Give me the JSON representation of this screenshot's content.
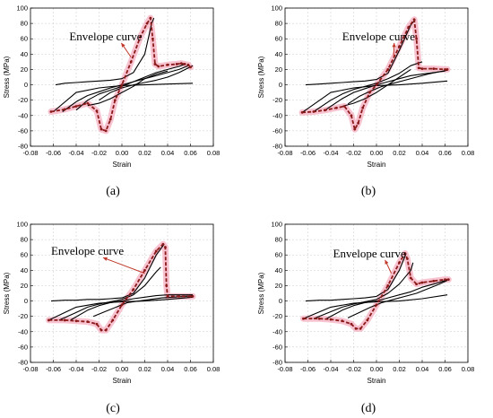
{
  "chart_data": [
    {
      "type": "line",
      "panel_label": "(a)",
      "xlabel": "Strain",
      "ylabel": "Stress (MPa)",
      "xlim": [
        -0.08,
        0.08
      ],
      "ylim": [
        -80,
        100
      ],
      "xticks": [
        "-0.08",
        "-0.06",
        "-0.04",
        "-0.02",
        "0.00",
        "0.02",
        "0.04",
        "0.06",
        "0.08"
      ],
      "yticks": [
        "-80",
        "-60",
        "-40",
        "-20",
        "0",
        "20",
        "40",
        "60",
        "80",
        "100"
      ],
      "grid": true,
      "annotation": {
        "text": "Envelope curve",
        "x": -0.046,
        "y": 58,
        "arrow_to": [
          0.008,
          36
        ]
      },
      "series": [
        {
          "name": "",
          "role": "envelope",
          "x": [
            -0.062,
            -0.05,
            -0.04,
            -0.03,
            -0.022,
            -0.018,
            -0.014,
            -0.01,
            -0.006,
            0.0,
            0.008,
            0.016,
            0.022,
            0.025,
            0.027,
            0.029,
            0.032,
            0.04,
            0.048,
            0.052,
            0.055,
            0.058,
            0.06
          ],
          "y": [
            -35,
            -32,
            -28,
            -24,
            -34,
            -58,
            -60,
            -45,
            -20,
            0,
            30,
            62,
            80,
            87,
            60,
            27,
            24,
            26,
            27,
            28,
            27,
            26,
            23
          ]
        },
        {
          "name": "",
          "role": "hysteresis",
          "x": [
            -0.058,
            -0.05,
            -0.04,
            -0.03,
            -0.02,
            -0.01,
            0.0,
            0.01,
            0.02,
            0.026,
            0.028
          ],
          "y": [
            0,
            2,
            3,
            4,
            5,
            6,
            8,
            16,
            40,
            80,
            87
          ]
        },
        {
          "name": "",
          "role": "hysteresis",
          "x": [
            -0.04,
            -0.03,
            -0.02,
            -0.01,
            0.0,
            0.01,
            0.02,
            0.03,
            0.04,
            0.05,
            0.055
          ],
          "y": [
            -33,
            -20,
            -12,
            -7,
            -2,
            4,
            10,
            16,
            20,
            24,
            27
          ]
        },
        {
          "name": "",
          "role": "hysteresis",
          "x": [
            -0.052,
            -0.04,
            -0.03,
            -0.02,
            -0.01,
            0.0,
            0.01,
            0.02,
            0.03,
            0.04,
            0.05,
            0.058
          ],
          "y": [
            -35,
            -22,
            -14,
            -9,
            -4,
            0,
            4,
            8,
            12,
            16,
            20,
            25
          ]
        },
        {
          "name": "",
          "role": "hysteresis",
          "x": [
            -0.06,
            -0.04,
            -0.02,
            0.0,
            0.02,
            0.04,
            0.062
          ],
          "y": [
            -35,
            -10,
            -4,
            -1,
            0,
            1,
            2
          ]
        },
        {
          "name": "",
          "role": "hysteresis",
          "x": [
            -0.02,
            -0.01,
            0.0,
            0.01,
            0.02,
            0.03,
            0.04,
            0.05,
            0.058,
            0.062
          ],
          "y": [
            -20,
            -10,
            -4,
            0,
            3,
            6,
            10,
            16,
            22,
            25
          ]
        },
        {
          "name": "",
          "role": "hysteresis",
          "x": [
            -0.03,
            -0.02,
            -0.01,
            0.0,
            0.01,
            0.02,
            0.03,
            0.04
          ],
          "y": [
            -27,
            -24,
            -18,
            -10,
            -2,
            8,
            14,
            18
          ]
        }
      ]
    },
    {
      "type": "line",
      "panel_label": "(b)",
      "xlabel": "Strain",
      "ylabel": "Stress (MPa)",
      "xlim": [
        -0.08,
        0.08
      ],
      "ylim": [
        -80,
        100
      ],
      "xticks": [
        "-0.08",
        "-0.06",
        "-0.04",
        "-0.02",
        "0.00",
        "0.02",
        "0.04",
        "0.06",
        "0.08"
      ],
      "yticks": [
        "-80",
        "-60",
        "-40",
        "-20",
        "0",
        "20",
        "40",
        "60",
        "80",
        "100"
      ],
      "grid": true,
      "annotation": {
        "text": "Envelope curve",
        "x": -0.03,
        "y": 58,
        "arrow_to": [
          0.015,
          36
        ]
      },
      "series": [
        {
          "name": "",
          "role": "envelope",
          "x": [
            -0.065,
            -0.055,
            -0.045,
            -0.035,
            -0.028,
            -0.022,
            -0.019,
            -0.016,
            -0.012,
            -0.006,
            0.0,
            0.01,
            0.02,
            0.028,
            0.033,
            0.035,
            0.037,
            0.04,
            0.05,
            0.06,
            0.062
          ],
          "y": [
            -36,
            -35,
            -33,
            -30,
            -28,
            -40,
            -58,
            -50,
            -30,
            -10,
            0,
            20,
            50,
            75,
            85,
            60,
            22,
            21,
            21,
            20,
            20
          ]
        },
        {
          "name": "",
          "role": "hysteresis",
          "x": [
            -0.062,
            -0.05,
            -0.04,
            -0.03,
            -0.02,
            -0.01,
            0.0,
            0.01,
            0.02,
            0.03,
            0.034
          ],
          "y": [
            0,
            1,
            2,
            3,
            4,
            5,
            7,
            15,
            45,
            78,
            85
          ]
        },
        {
          "name": "",
          "role": "hysteresis",
          "x": [
            -0.055,
            -0.04,
            -0.03,
            -0.02,
            -0.01,
            0.0,
            0.01,
            0.02,
            0.03,
            0.04
          ],
          "y": [
            -35,
            -20,
            -12,
            -6,
            -2,
            2,
            8,
            15,
            25,
            30
          ]
        },
        {
          "name": "",
          "role": "hysteresis",
          "x": [
            -0.045,
            -0.03,
            -0.02,
            -0.01,
            0.0,
            0.01,
            0.02,
            0.03,
            0.04,
            0.05,
            0.06
          ],
          "y": [
            -33,
            -18,
            -10,
            -5,
            0,
            4,
            8,
            12,
            14,
            16,
            18
          ]
        },
        {
          "name": "",
          "role": "hysteresis",
          "x": [
            -0.065,
            -0.04,
            -0.02,
            0.0,
            0.02,
            0.04,
            0.062
          ],
          "y": [
            -36,
            -10,
            -4,
            -1,
            0,
            2,
            5
          ]
        },
        {
          "name": "",
          "role": "hysteresis",
          "x": [
            -0.025,
            -0.015,
            -0.005,
            0.005,
            0.015,
            0.025,
            0.035,
            0.045,
            0.055,
            0.062
          ],
          "y": [
            -25,
            -15,
            -8,
            -2,
            2,
            6,
            10,
            14,
            17,
            19
          ]
        },
        {
          "name": "",
          "role": "hysteresis",
          "x": [
            -0.03,
            -0.02,
            -0.01,
            0.0,
            0.01,
            0.02,
            0.03
          ],
          "y": [
            -28,
            -24,
            -18,
            -10,
            0,
            10,
            20
          ]
        }
      ]
    },
    {
      "type": "line",
      "panel_label": "(c)",
      "xlabel": "Strain",
      "ylabel": "Stress (MPa)",
      "xlim": [
        -0.08,
        0.08
      ],
      "ylim": [
        -80,
        100
      ],
      "xticks": [
        "-0.08",
        "-0.06",
        "-0.04",
        "-0.02",
        "0.00",
        "0.02",
        "0.04",
        "0.06",
        "0.08"
      ],
      "yticks": [
        "-80",
        "-60",
        "-40",
        "-20",
        "0",
        "20",
        "40",
        "60",
        "80",
        "100"
      ],
      "grid": true,
      "annotation": {
        "text": "Envelope curve",
        "x": -0.062,
        "y": 60,
        "arrow_to": [
          0.02,
          36
        ]
      },
      "series": [
        {
          "name": "",
          "role": "envelope",
          "x": [
            -0.064,
            -0.05,
            -0.04,
            -0.03,
            -0.022,
            -0.018,
            -0.014,
            -0.008,
            0.0,
            0.01,
            0.02,
            0.03,
            0.036,
            0.038,
            0.039,
            0.04,
            0.05,
            0.06,
            0.062
          ],
          "y": [
            -25,
            -25,
            -26,
            -27,
            -30,
            -38,
            -38,
            -25,
            -5,
            15,
            40,
            65,
            74,
            70,
            20,
            6,
            6,
            6,
            6
          ]
        },
        {
          "name": "",
          "role": "hysteresis",
          "x": [
            -0.062,
            -0.05,
            -0.04,
            -0.03,
            -0.02,
            -0.01,
            0.0,
            0.01,
            0.02,
            0.03,
            0.037
          ],
          "y": [
            0,
            1,
            1,
            2,
            2,
            3,
            4,
            10,
            30,
            60,
            74
          ]
        },
        {
          "name": "",
          "role": "hysteresis",
          "x": [
            -0.055,
            -0.04,
            -0.03,
            -0.02,
            -0.01,
            0.0,
            0.01,
            0.02,
            0.03,
            0.034
          ],
          "y": [
            -25,
            -15,
            -8,
            -4,
            -1,
            2,
            8,
            20,
            38,
            44
          ]
        },
        {
          "name": "",
          "role": "hysteresis",
          "x": [
            -0.045,
            -0.03,
            -0.02,
            -0.01,
            0.0,
            0.01,
            0.02,
            0.03,
            0.04,
            0.05,
            0.062
          ],
          "y": [
            -25,
            -12,
            -6,
            -2,
            0,
            3,
            5,
            7,
            8,
            8,
            8
          ]
        },
        {
          "name": "",
          "role": "hysteresis",
          "x": [
            -0.064,
            -0.04,
            -0.02,
            0.0,
            0.02,
            0.04,
            0.062
          ],
          "y": [
            -25,
            -8,
            -3,
            -1,
            0,
            2,
            5
          ]
        },
        {
          "name": "",
          "role": "hysteresis",
          "x": [
            -0.025,
            -0.015,
            -0.005,
            0.005,
            0.015,
            0.025,
            0.035,
            0.045,
            0.055,
            0.062
          ],
          "y": [
            -20,
            -14,
            -8,
            -2,
            0,
            2,
            4,
            5,
            6,
            7
          ]
        }
      ]
    },
    {
      "type": "line",
      "panel_label": "(d)",
      "xlabel": "Strain",
      "ylabel": "Stress (MPa)",
      "xlim": [
        -0.08,
        0.08
      ],
      "ylim": [
        -80,
        100
      ],
      "xticks": [
        "-0.08",
        "-0.06",
        "-0.04",
        "-0.02",
        "0.00",
        "0.02",
        "0.04",
        "0.06",
        "0.08"
      ],
      "yticks": [
        "-80",
        "-60",
        "-40",
        "-20",
        "0",
        "20",
        "40",
        "60",
        "80",
        "100"
      ],
      "grid": true,
      "annotation": {
        "text": "Envelope curve",
        "x": -0.038,
        "y": 57,
        "arrow_to": [
          0.013,
          36
        ]
      },
      "series": [
        {
          "name": "",
          "role": "envelope",
          "x": [
            -0.064,
            -0.05,
            -0.04,
            -0.03,
            -0.022,
            -0.018,
            -0.014,
            -0.008,
            0.0,
            0.01,
            0.02,
            0.025,
            0.027,
            0.03,
            0.035,
            0.04,
            0.05,
            0.06,
            0.063
          ],
          "y": [
            -23,
            -23,
            -24,
            -26,
            -30,
            -36,
            -36,
            -25,
            -5,
            20,
            50,
            62,
            55,
            30,
            22,
            24,
            26,
            28,
            28
          ]
        },
        {
          "name": "",
          "role": "hysteresis",
          "x": [
            -0.062,
            -0.05,
            -0.04,
            -0.03,
            -0.02,
            -0.01,
            0.0,
            0.01,
            0.02,
            0.026
          ],
          "y": [
            0,
            1,
            1,
            2,
            3,
            4,
            6,
            15,
            40,
            62
          ]
        },
        {
          "name": "",
          "role": "hysteresis",
          "x": [
            -0.055,
            -0.04,
            -0.03,
            -0.02,
            -0.01,
            0.0,
            0.01,
            0.02,
            0.03,
            0.032
          ],
          "y": [
            -23,
            -14,
            -8,
            -4,
            -1,
            2,
            10,
            22,
            40,
            50
          ]
        },
        {
          "name": "",
          "role": "hysteresis",
          "x": [
            -0.045,
            -0.03,
            -0.02,
            -0.01,
            0.0,
            0.01,
            0.02,
            0.03,
            0.04,
            0.05,
            0.063
          ],
          "y": [
            -24,
            -12,
            -6,
            -2,
            0,
            4,
            8,
            12,
            18,
            22,
            28
          ]
        },
        {
          "name": "",
          "role": "hysteresis",
          "x": [
            -0.064,
            -0.04,
            -0.02,
            0.0,
            0.02,
            0.04,
            0.062
          ],
          "y": [
            -23,
            -8,
            -3,
            -1,
            0,
            3,
            8
          ]
        },
        {
          "name": "",
          "role": "hysteresis",
          "x": [
            -0.025,
            -0.015,
            -0.005,
            0.005,
            0.015,
            0.025,
            0.035,
            0.045,
            0.055,
            0.062
          ],
          "y": [
            -22,
            -15,
            -8,
            -2,
            2,
            6,
            10,
            16,
            22,
            27
          ]
        }
      ]
    }
  ],
  "colors": {
    "hysteresis": "#000000",
    "envelope": "#8b1a1a",
    "highlight": "#f7b8c8",
    "grid": "#c8c8c8",
    "arrow": "#c0392b"
  }
}
